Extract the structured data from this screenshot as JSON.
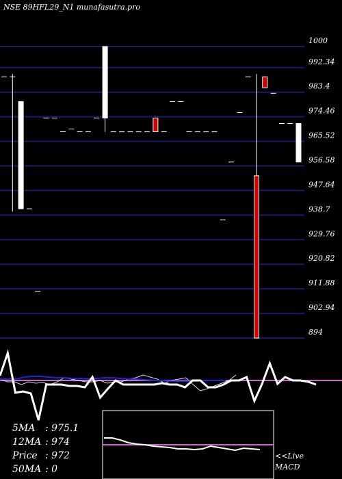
{
  "title": "NSE 89HFL29_N1 munafasutra.pro",
  "chart_data": {
    "type": "candlestick",
    "ylim": [
      894,
      1000
    ],
    "y_ticks": [
      "1000",
      "992.34",
      "983.4",
      "974.46",
      "965.52",
      "956.58",
      "947.64",
      "938.7",
      "929.76",
      "920.82",
      "911.88",
      "902.94",
      "894"
    ],
    "candles": [
      {
        "open": 989,
        "close": 989,
        "high": 989,
        "low": 989
      },
      {
        "open": 989,
        "close": 989,
        "high": 990,
        "low": 940
      },
      {
        "open": 941,
        "close": 980,
        "high": 980,
        "low": 941
      },
      {
        "open": 941,
        "close": 941,
        "high": 941,
        "low": 941
      },
      {
        "open": 911,
        "close": 911,
        "high": 911,
        "low": 911
      },
      {
        "open": 974,
        "close": 974,
        "high": 974,
        "low": 974
      },
      {
        "open": 974,
        "close": 974,
        "high": 974,
        "low": 974
      },
      {
        "open": 969,
        "close": 969,
        "high": 969,
        "low": 969
      },
      {
        "open": 970,
        "close": 970,
        "high": 970,
        "low": 970
      },
      {
        "open": 969,
        "close": 969,
        "high": 969,
        "low": 969
      },
      {
        "open": 969,
        "close": 969,
        "high": 969,
        "low": 969
      },
      {
        "open": 974,
        "close": 974,
        "high": 974,
        "low": 974
      },
      {
        "open": 974,
        "close": 1000,
        "high": 1000,
        "low": 969
      },
      {
        "open": 969,
        "close": 969,
        "high": 969,
        "low": 969
      },
      {
        "open": 969,
        "close": 969,
        "high": 969,
        "low": 969
      },
      {
        "open": 969,
        "close": 969,
        "high": 969,
        "low": 969
      },
      {
        "open": 969,
        "close": 969,
        "high": 969,
        "low": 969
      },
      {
        "open": 969,
        "close": 969,
        "high": 969,
        "low": 969
      },
      {
        "open": 974,
        "close": 969,
        "high": 974,
        "low": 969
      },
      {
        "open": 969,
        "close": 969,
        "high": 969,
        "low": 969
      },
      {
        "open": 980,
        "close": 980,
        "high": 980,
        "low": 980
      },
      {
        "open": 980,
        "close": 980,
        "high": 980,
        "low": 980
      },
      {
        "open": 969,
        "close": 969,
        "high": 969,
        "low": 969
      },
      {
        "open": 969,
        "close": 969,
        "high": 969,
        "low": 969
      },
      {
        "open": 969,
        "close": 969,
        "high": 969,
        "low": 969
      },
      {
        "open": 969,
        "close": 969,
        "high": 969,
        "low": 969
      },
      {
        "open": 937,
        "close": 937,
        "high": 937,
        "low": 937
      },
      {
        "open": 958,
        "close": 958,
        "high": 958,
        "low": 958
      },
      {
        "open": 976,
        "close": 976,
        "high": 976,
        "low": 976
      },
      {
        "open": 989,
        "close": 989,
        "high": 989,
        "low": 989
      },
      {
        "open": 953,
        "close": 894,
        "high": 990,
        "low": 894
      },
      {
        "open": 989,
        "close": 985,
        "high": 989,
        "low": 985
      },
      {
        "open": 983,
        "close": 983,
        "high": 983,
        "low": 983
      },
      {
        "open": 972,
        "close": 972,
        "high": 972,
        "low": 972
      },
      {
        "open": 972,
        "close": 972,
        "high": 972,
        "low": 972
      },
      {
        "open": 958,
        "close": 972,
        "high": 972,
        "low": 958
      }
    ],
    "ma_panel": {
      "price_line": [
        53,
        20,
        78,
        76,
        79,
        118,
        66,
        66,
        66,
        68,
        68,
        70,
        55,
        85,
        72,
        60,
        66,
        66,
        66,
        66,
        66,
        64,
        66,
        66,
        70,
        60,
        60,
        70,
        70,
        66,
        60,
        60,
        55,
        90,
        65,
        35,
        65,
        55,
        60,
        60,
        62,
        66
      ],
      "ma_line": [
        58,
        58,
        58,
        55,
        54,
        54,
        55,
        56,
        56,
        57,
        57,
        58,
        57,
        56,
        56,
        57,
        58,
        58,
        59,
        60,
        60,
        61,
        61,
        61,
        61,
        60,
        60,
        60,
        60
      ],
      "thin_line": [
        58,
        62,
        62,
        66,
        62,
        64,
        63,
        66,
        62,
        56,
        58,
        60,
        62,
        62,
        60,
        64,
        62,
        62,
        58,
        56,
        52,
        55,
        58,
        64,
        60,
        58,
        56,
        66,
        75,
        72,
        68,
        64,
        60,
        52
      ],
      "reference": 60
    },
    "macd": {
      "signal_line": [
        40,
        40,
        43,
        47,
        49,
        50,
        52,
        53,
        54,
        56,
        56,
        57,
        56,
        52,
        54,
        56,
        58,
        55,
        56,
        57
      ],
      "zero": 50
    }
  },
  "stats": [
    {
      "label": "5MA",
      "value": "975.1"
    },
    {
      "label": "12MA",
      "value": "974"
    },
    {
      "label": "Price",
      "value": "972"
    },
    {
      "label": "50MA",
      "value": "0"
    }
  ],
  "macd_label_1": "<<Live",
  "macd_label_2": "MACD",
  "colors": {
    "background": "#000000",
    "grid": "#1a1a6a",
    "bear": "#cc0000",
    "bull": "#ffffff",
    "ma": "#2222dd",
    "reference": "#cc66cc"
  }
}
